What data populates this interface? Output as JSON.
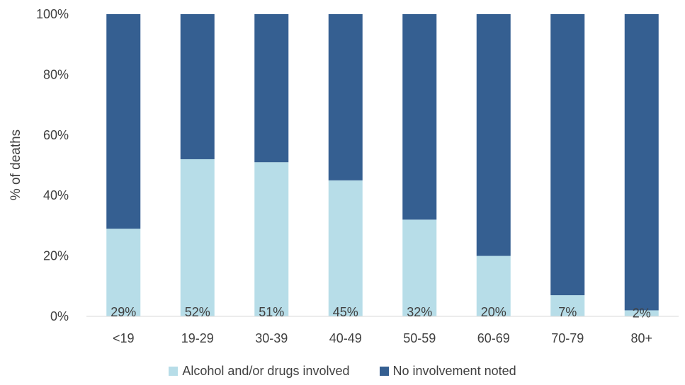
{
  "chart_data": {
    "type": "bar",
    "stacked": true,
    "normalized": true,
    "ylabel": "% of deaths",
    "xlabel": "",
    "ylim": [
      0,
      100
    ],
    "y_ticks": [
      "0%",
      "20%",
      "40%",
      "60%",
      "80%",
      "100%"
    ],
    "grid": false,
    "legend_position": "bottom",
    "categories": [
      "<19",
      "19-29",
      "30-39",
      "40-49",
      "50-59",
      "60-69",
      "70-79",
      "80+"
    ],
    "series": [
      {
        "name": "Alcohol and/or drugs involved",
        "color": "#b7dde8",
        "values": [
          29,
          52,
          51,
          45,
          32,
          20,
          7,
          2
        ],
        "labels": [
          "29%",
          "52%",
          "51%",
          "45%",
          "32%",
          "20%",
          "7%",
          "2%"
        ]
      },
      {
        "name": "No involvement noted",
        "color": "#355f91",
        "values": [
          71,
          48,
          49,
          55,
          68,
          80,
          93,
          98
        ]
      }
    ]
  }
}
